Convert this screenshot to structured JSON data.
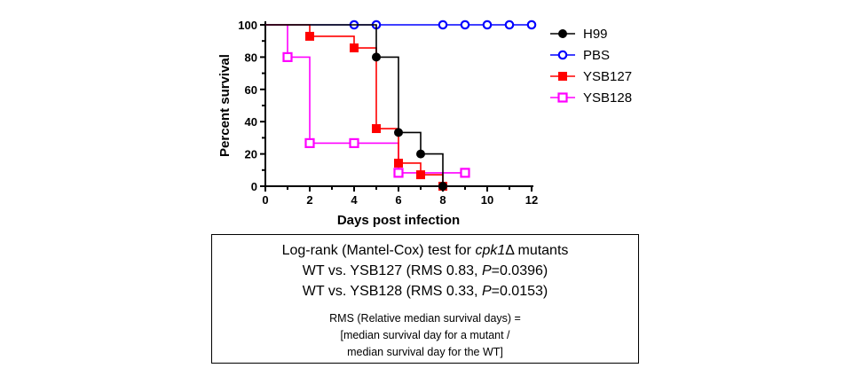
{
  "chart_data": {
    "type": "line",
    "subtype": "kaplan-meier-survival",
    "xlabel": "Days post infection",
    "ylabel": "Percent survival",
    "xlim": [
      0,
      12
    ],
    "ylim": [
      0,
      100
    ],
    "x_ticks": [
      0,
      2,
      4,
      6,
      8,
      10,
      12
    ],
    "y_ticks": [
      0,
      20,
      40,
      60,
      80,
      100
    ],
    "grid": false,
    "legend_position": "right",
    "series": [
      {
        "name": "H99",
        "color": "#000000",
        "marker": "filled-circle",
        "steps": [
          [
            0,
            100
          ],
          [
            5,
            80
          ],
          [
            6,
            33.3
          ],
          [
            7,
            20
          ],
          [
            8,
            0
          ]
        ],
        "markers": [
          [
            5,
            80
          ],
          [
            6,
            33.3
          ],
          [
            7,
            20
          ],
          [
            8,
            0
          ]
        ]
      },
      {
        "name": "PBS",
        "color": "#0000ff",
        "marker": "open-circle",
        "steps": [
          [
            0,
            100
          ],
          [
            12,
            100
          ]
        ],
        "markers": [
          [
            4,
            100
          ],
          [
            5,
            100
          ],
          [
            8,
            100
          ],
          [
            9,
            100
          ],
          [
            10,
            100
          ],
          [
            11,
            100
          ],
          [
            12,
            100
          ]
        ]
      },
      {
        "name": "YSB127",
        "color": "#ff0000",
        "marker": "filled-square",
        "steps": [
          [
            0,
            100
          ],
          [
            2,
            92.9
          ],
          [
            4,
            85.7
          ],
          [
            5,
            35.7
          ],
          [
            6,
            14.3
          ],
          [
            7,
            7.1
          ],
          [
            8,
            0
          ]
        ],
        "markers": [
          [
            2,
            92.9
          ],
          [
            4,
            85.7
          ],
          [
            5,
            35.7
          ],
          [
            6,
            14.3
          ],
          [
            7,
            7.1
          ],
          [
            8,
            0
          ]
        ]
      },
      {
        "name": "YSB128",
        "color": "#ff00ff",
        "marker": "open-square",
        "steps": [
          [
            0,
            100
          ],
          [
            1,
            80
          ],
          [
            2,
            26.7
          ],
          [
            6,
            8.3
          ],
          [
            9,
            8.3
          ]
        ],
        "markers": [
          [
            1,
            80
          ],
          [
            2,
            26.7
          ],
          [
            4,
            26.7
          ],
          [
            6,
            8.3
          ],
          [
            9,
            8.3
          ]
        ]
      }
    ]
  },
  "stats_box": {
    "line1_pre": "Log-rank (Mantel-Cox) test for ",
    "line1_gene": "cpk1",
    "line1_post": "Δ mutants",
    "line2_pre": "WT vs. YSB127 (RMS 0.83, ",
    "line2_p": "P",
    "line2_post": "=0.0396)",
    "line3_pre": "WT vs. YSB128 (RMS 0.33, ",
    "line3_p": "P",
    "line3_post": "=0.0153)",
    "note1": "RMS (Relative median survival days) =",
    "note2": "[median survival day for a mutant  /",
    "note3": "median survival day for the WT]"
  }
}
